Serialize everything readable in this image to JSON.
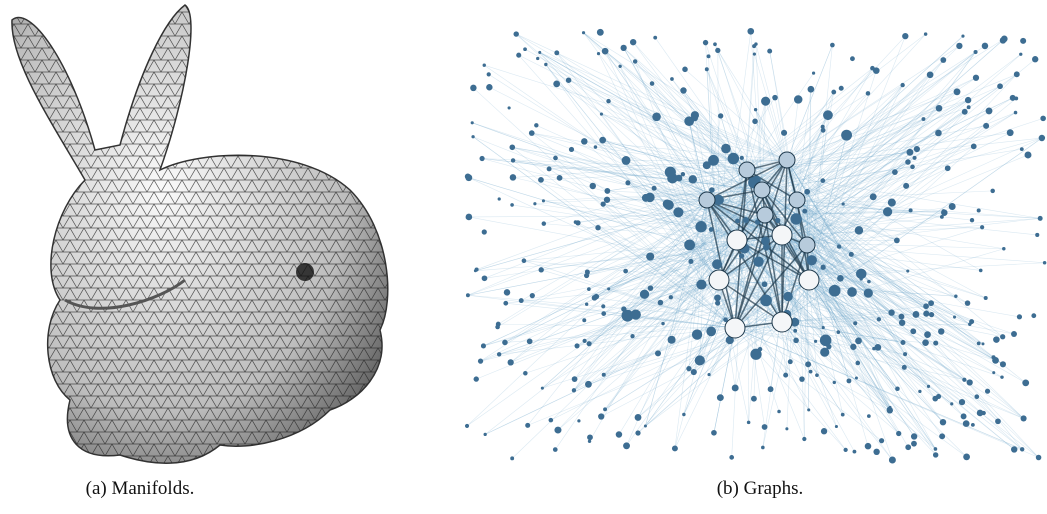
{
  "figures": [
    {
      "caption": "(a) Manifolds."
    },
    {
      "caption": "(b) Graphs."
    }
  ]
}
